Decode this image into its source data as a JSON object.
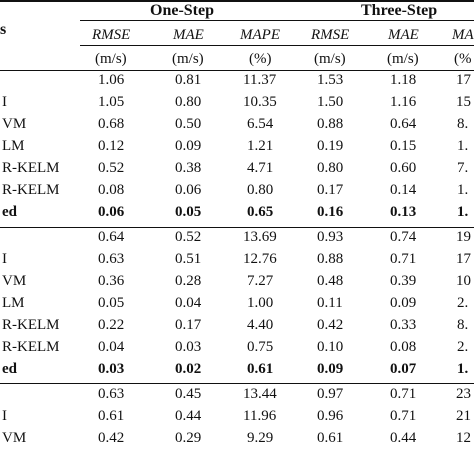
{
  "header": {
    "group_left": "One-Step",
    "group_right": "Three-Step",
    "stub": "s",
    "metrics": [
      "RMSE",
      "MAE",
      "MAPE",
      "RMSE",
      "MAE",
      "MA"
    ],
    "units": [
      "(m/s)",
      "(m/s)",
      "(%)",
      "(m/s)",
      "(m/s)",
      "(%"
    ]
  },
  "rows": [
    {
      "label": "",
      "cells": [
        "1.06",
        "0.81",
        "11.37",
        "1.53",
        "1.18",
        "17"
      ],
      "bold": false
    },
    {
      "label": "I",
      "cells": [
        "1.05",
        "0.80",
        "10.35",
        "1.50",
        "1.16",
        "15"
      ],
      "bold": false
    },
    {
      "label": "VM",
      "cells": [
        "0.68",
        "0.50",
        "6.54",
        "0.88",
        "0.64",
        "8."
      ],
      "bold": false
    },
    {
      "label": "LM",
      "cells": [
        "0.12",
        "0.09",
        "1.21",
        "0.19",
        "0.15",
        "1."
      ],
      "bold": false
    },
    {
      "label": "R-KELM",
      "cells": [
        "0.52",
        "0.38",
        "4.71",
        "0.80",
        "0.60",
        "7."
      ],
      "bold": false
    },
    {
      "label": "R-KELM",
      "cells": [
        "0.08",
        "0.06",
        "0.80",
        "0.17",
        "0.14",
        "1."
      ],
      "bold": false
    },
    {
      "label": "ed",
      "cells": [
        "0.06",
        "0.05",
        "0.65",
        "0.16",
        "0.13",
        "1."
      ],
      "bold": true
    },
    {
      "label": "",
      "cells": [
        "0.64",
        "0.52",
        "13.69",
        "0.93",
        "0.74",
        "19"
      ],
      "bold": false
    },
    {
      "label": "I",
      "cells": [
        "0.63",
        "0.51",
        "12.76",
        "0.88",
        "0.71",
        "17"
      ],
      "bold": false
    },
    {
      "label": "VM",
      "cells": [
        "0.36",
        "0.28",
        "7.27",
        "0.48",
        "0.39",
        "10"
      ],
      "bold": false
    },
    {
      "label": "LM",
      "cells": [
        "0.05",
        "0.04",
        "1.00",
        "0.11",
        "0.09",
        "2."
      ],
      "bold": false
    },
    {
      "label": "R-KELM",
      "cells": [
        "0.22",
        "0.17",
        "4.40",
        "0.42",
        "0.33",
        "8."
      ],
      "bold": false
    },
    {
      "label": "R-KELM",
      "cells": [
        "0.04",
        "0.03",
        "0.75",
        "0.10",
        "0.08",
        "2."
      ],
      "bold": false
    },
    {
      "label": "ed",
      "cells": [
        "0.03",
        "0.02",
        "0.61",
        "0.09",
        "0.07",
        "1."
      ],
      "bold": true
    },
    {
      "label": "",
      "cells": [
        "0.63",
        "0.45",
        "13.44",
        "0.97",
        "0.71",
        "23"
      ],
      "bold": false
    },
    {
      "label": "I",
      "cells": [
        "0.61",
        "0.44",
        "11.96",
        "0.96",
        "0.71",
        "21"
      ],
      "bold": false
    },
    {
      "label": "VM",
      "cells": [
        "0.42",
        "0.29",
        "9.29",
        "0.61",
        "0.44",
        "12"
      ],
      "bold": false
    }
  ]
}
